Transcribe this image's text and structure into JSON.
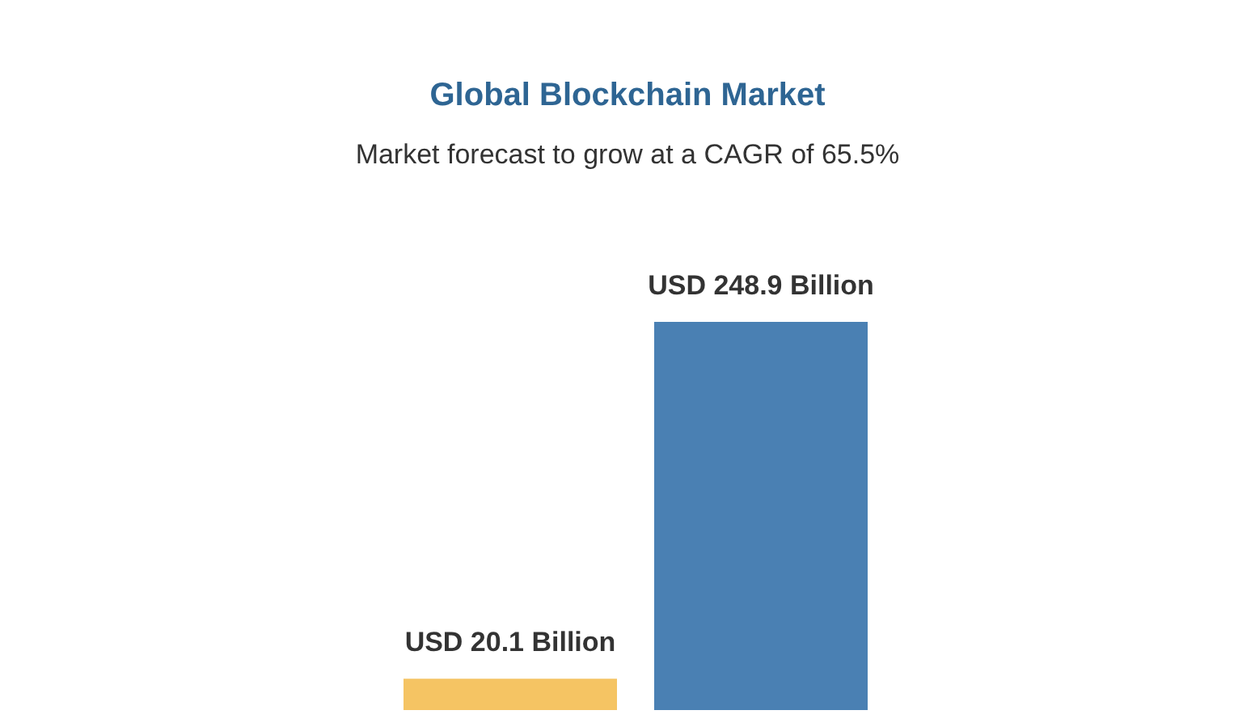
{
  "chart_data": {
    "type": "bar",
    "title": "Global Blockchain Market",
    "subtitle": "Market forecast to grow at a CAGR of 65.5%",
    "categories": [
      null,
      null
    ],
    "values": [
      20.1,
      248.9
    ],
    "colors": [
      "#f5c463",
      "#4a80b3"
    ],
    "value_labels": [
      "USD 20.1 Billion",
      "USD 248.9 Billion"
    ]
  }
}
